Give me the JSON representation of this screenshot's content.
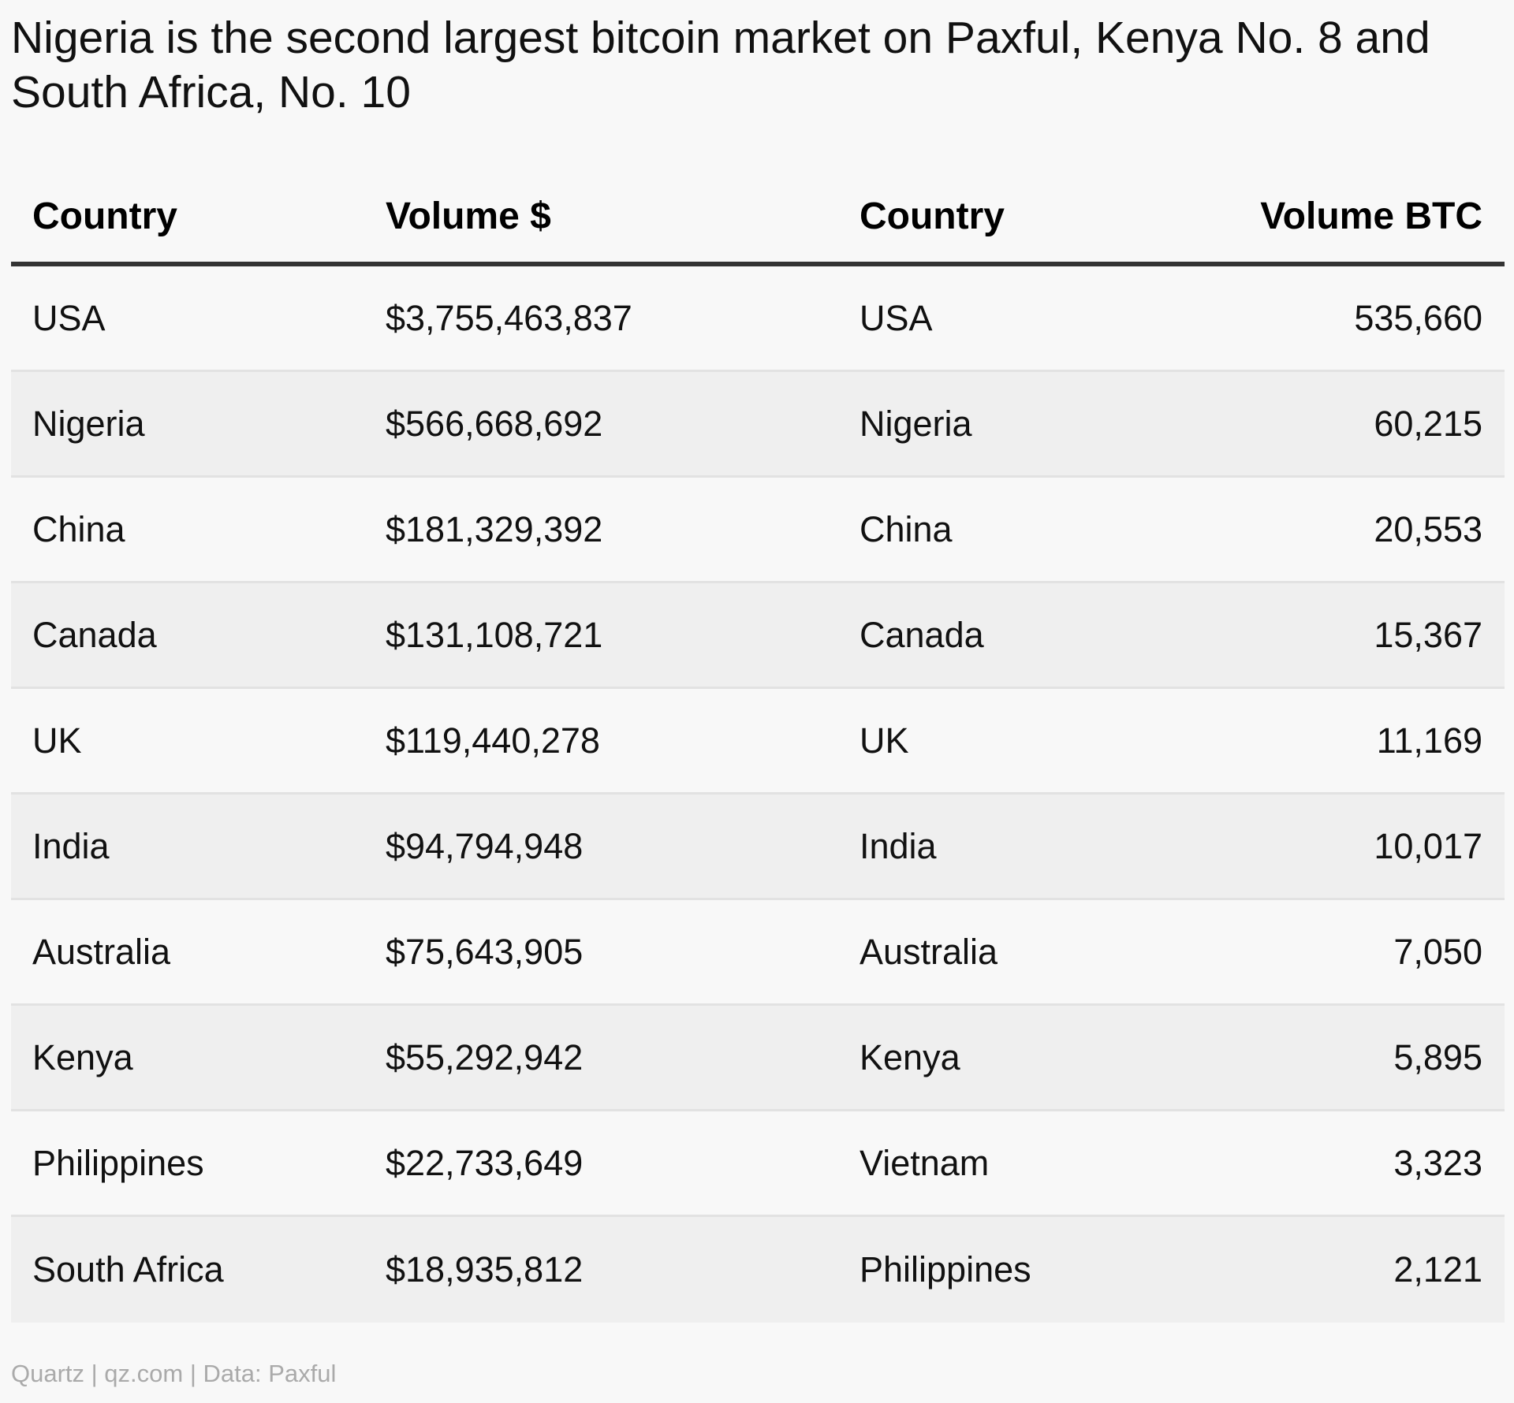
{
  "title": "Nigeria is the second largest bitcoin market on Paxful, Kenya No. 8 and South Africa, No. 10",
  "headers": {
    "country_usd": "Country",
    "volume_usd": "Volume $",
    "country_btc": "Country",
    "volume_btc": "Volume BTC"
  },
  "footer": "Quartz | qz.com | Data: Paxful",
  "chart_data": {
    "type": "table",
    "title": "Nigeria is the second largest bitcoin market on Paxful, Kenya No. 8 and South Africa, No. 10",
    "columns": [
      "Country",
      "Volume $",
      "Country",
      "Volume BTC"
    ],
    "rows": [
      [
        "USA",
        "$3,755,463,837",
        "USA",
        "535,660"
      ],
      [
        "Nigeria",
        "$566,668,692",
        "Nigeria",
        "60,215"
      ],
      [
        "China",
        "$181,329,392",
        "China",
        "20,553"
      ],
      [
        "Canada",
        "$131,108,721",
        "Canada",
        "15,367"
      ],
      [
        "UK",
        "$119,440,278",
        "UK",
        "11,169"
      ],
      [
        "India",
        "$94,794,948",
        "India",
        "10,017"
      ],
      [
        "Australia",
        "$75,643,905",
        "Australia",
        "7,050"
      ],
      [
        "Kenya",
        "$55,292,942",
        "Kenya",
        "5,895"
      ],
      [
        "Philippines",
        "$22,733,649",
        "Vietnam",
        "3,323"
      ],
      [
        "South Africa",
        "$18,935,812",
        "Philippines",
        "2,121"
      ]
    ]
  }
}
